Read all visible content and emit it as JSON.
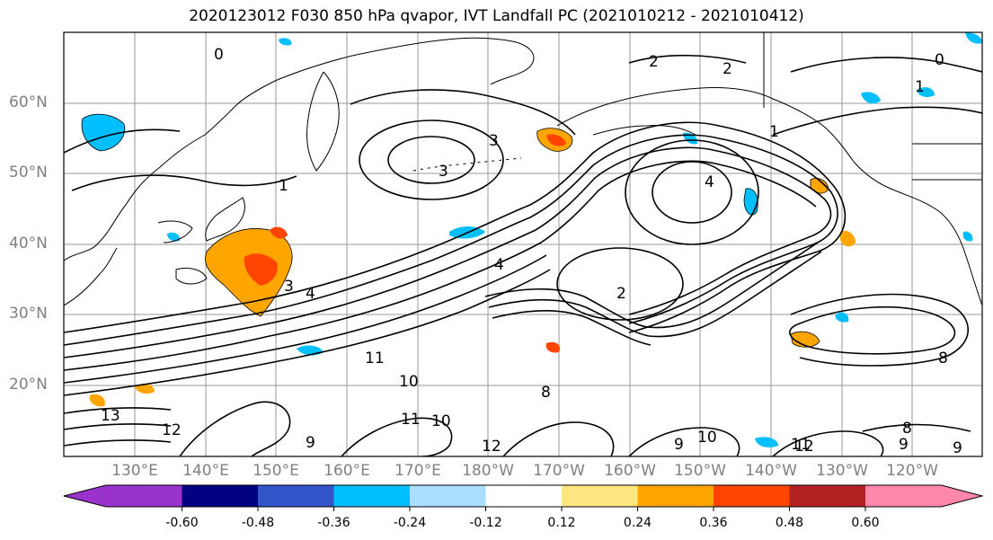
{
  "title": "2020123012 F030 850 hPa qvapor, IVT Landfall PC (2021010212 - 2021010412)",
  "lat_labels": [
    "60°N",
    "50°N",
    "40°N",
    "30°N",
    "20°N"
  ],
  "lon_labels": [
    "130°E",
    "140°E",
    "150°E",
    "160°E",
    "170°E",
    "180°W",
    "170°W",
    "160°W",
    "150°W",
    "140°W",
    "130°W",
    "120°W"
  ],
  "colorbar": {
    "ticks": [
      "-0.60",
      "-0.48",
      "-0.36",
      "-0.24",
      "-0.12",
      "0.12",
      "0.24",
      "0.36",
      "0.48",
      "0.60"
    ],
    "colors": [
      "#9933cc",
      "#000080",
      "#3355cc",
      "#00bfff",
      "#aadfff",
      "#ffffff",
      "#ffe680",
      "#ffa500",
      "#ff4500",
      "#b22222",
      "#ff88aa"
    ]
  },
  "contour_labels": [
    "0",
    "1",
    "2",
    "3",
    "4",
    "2",
    "3",
    "4",
    "1",
    "2",
    "3",
    "4",
    "1",
    "0",
    "8",
    "9",
    "10",
    "11",
    "12",
    "13",
    "9",
    "10",
    "11",
    "12",
    "8",
    "9",
    "10",
    "11",
    "12",
    "8",
    "9"
  ]
}
